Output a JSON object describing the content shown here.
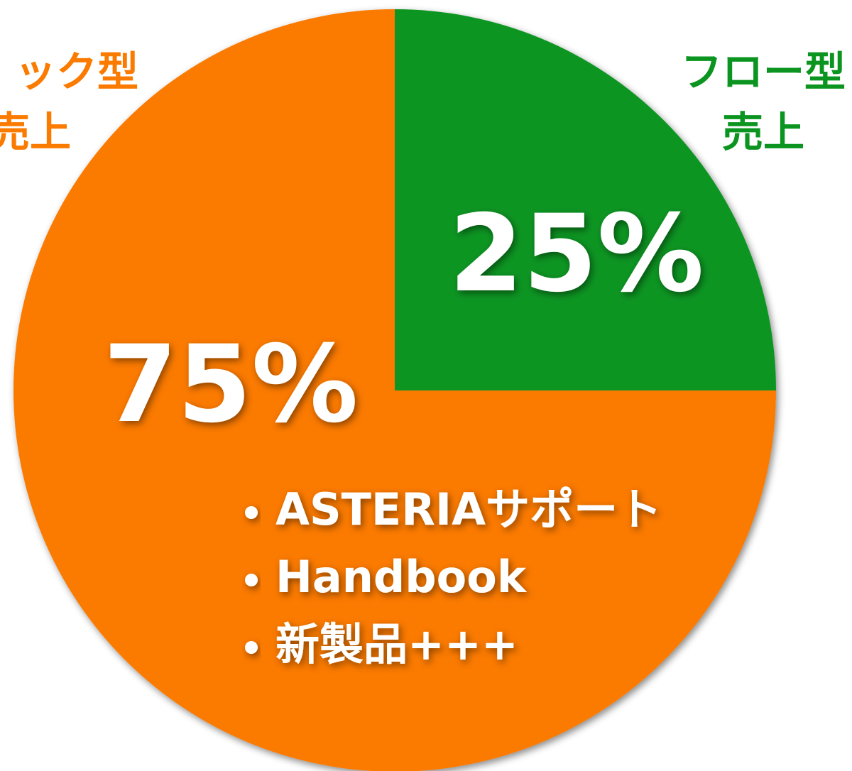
{
  "chart_data": {
    "type": "pie",
    "categories": [
      [
        "フロー型",
        "売上"
      ],
      [
        "ック型",
        "売上"
      ]
    ],
    "values": [
      25,
      75
    ],
    "value_labels": [
      "25%",
      "75%"
    ],
    "colors": [
      "#0b9520",
      "#fb7a00"
    ],
    "annotation": [
      "ASTERIAサポート",
      "Handbook",
      "新製品+++"
    ]
  }
}
